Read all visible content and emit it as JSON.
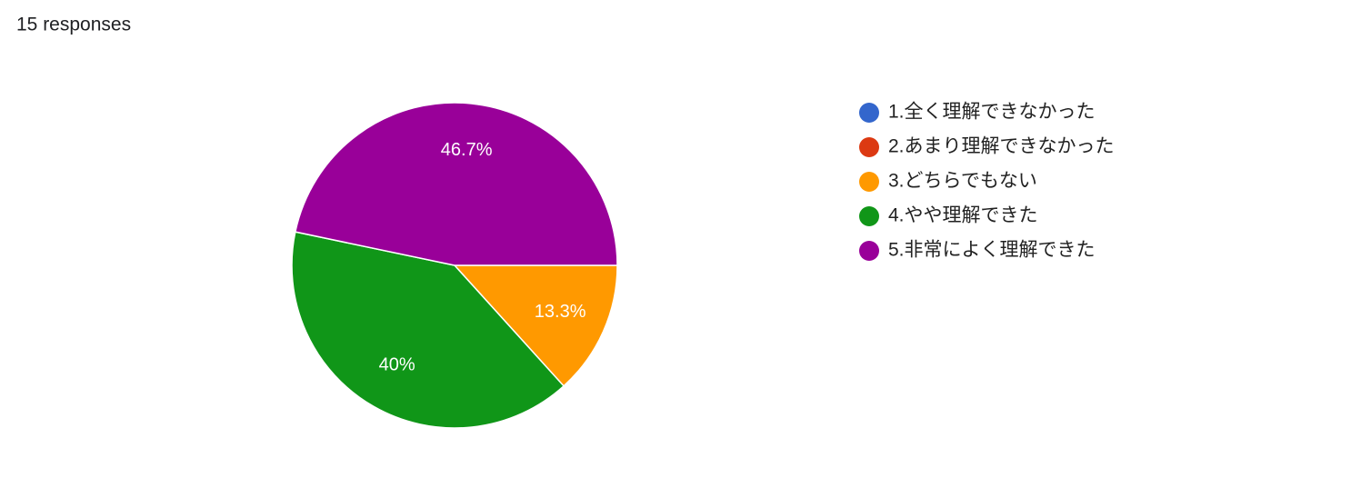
{
  "chart_data": {
    "type": "pie",
    "title": "15 responses",
    "categories": [
      "1.全く理解できなかった",
      "2.あまり理解できなかった",
      "3.どちらでもない",
      "4.やや理解できた",
      "5.非常によく理解できた"
    ],
    "values": [
      0,
      0,
      13.3,
      40,
      46.7
    ],
    "value_labels": [
      null,
      null,
      "13.3%",
      "40%",
      "46.7%"
    ],
    "colors": [
      "#3366cc",
      "#dc3912",
      "#ff9900",
      "#109618",
      "#990099"
    ],
    "legend": "right"
  }
}
